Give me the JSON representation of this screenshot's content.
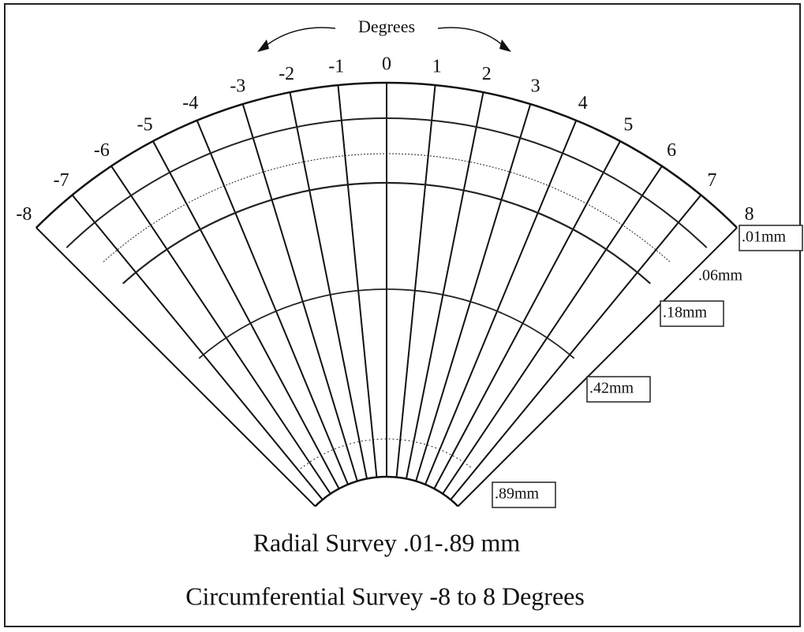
{
  "title": "Degrees",
  "degrees": [
    -8,
    -7,
    -6,
    -5,
    -4,
    -3,
    -2,
    -1,
    0,
    1,
    2,
    3,
    4,
    5,
    6,
    7,
    8
  ],
  "radial_labels": [
    ".01mm",
    ".06mm",
    ".18mm",
    ".42mm",
    ".89mm"
  ],
  "captions": [
    "Radial Survey .01-.89 mm",
    "Circumferential Survey -8 to 8 Degrees"
  ]
}
